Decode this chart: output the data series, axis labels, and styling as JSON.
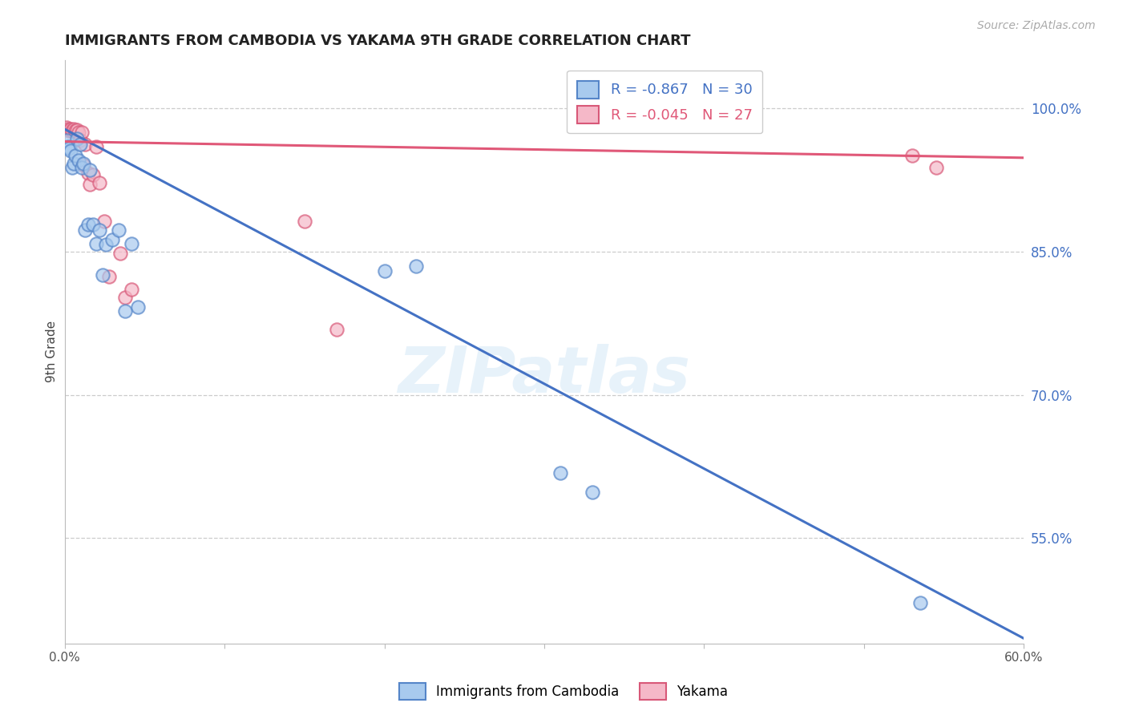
{
  "title": "IMMIGRANTS FROM CAMBODIA VS YAKAMA 9TH GRADE CORRELATION CHART",
  "source": "Source: ZipAtlas.com",
  "ylabel": "9th Grade",
  "ylabel_right_ticks": [
    "100.0%",
    "85.0%",
    "70.0%",
    "55.0%"
  ],
  "ylabel_right_values": [
    1.0,
    0.85,
    0.7,
    0.55
  ],
  "xlim": [
    0.0,
    0.6
  ],
  "ylim": [
    0.44,
    1.05
  ],
  "legend_blue_r": "-0.867",
  "legend_blue_n": "30",
  "legend_pink_r": "-0.045",
  "legend_pink_n": "27",
  "blue_scatter_x": [
    0.001,
    0.002,
    0.003,
    0.004,
    0.005,
    0.006,
    0.007,
    0.008,
    0.009,
    0.01,
    0.011,
    0.012,
    0.013,
    0.015,
    0.016,
    0.018,
    0.02,
    0.022,
    0.024,
    0.026,
    0.03,
    0.034,
    0.038,
    0.042,
    0.046,
    0.2,
    0.22,
    0.31,
    0.33,
    0.535
  ],
  "blue_scatter_y": [
    0.966,
    0.96,
    0.958,
    0.955,
    0.938,
    0.942,
    0.95,
    0.968,
    0.945,
    0.962,
    0.938,
    0.942,
    0.872,
    0.878,
    0.935,
    0.878,
    0.858,
    0.872,
    0.825,
    0.857,
    0.862,
    0.872,
    0.788,
    0.858,
    0.792,
    0.83,
    0.835,
    0.618,
    0.598,
    0.482
  ],
  "pink_scatter_x": [
    0.001,
    0.002,
    0.003,
    0.004,
    0.005,
    0.006,
    0.007,
    0.008,
    0.009,
    0.01,
    0.011,
    0.012,
    0.013,
    0.015,
    0.016,
    0.018,
    0.02,
    0.022,
    0.025,
    0.028,
    0.035,
    0.038,
    0.042,
    0.15,
    0.17,
    0.53,
    0.545
  ],
  "pink_scatter_y": [
    0.98,
    0.978,
    0.976,
    0.978,
    0.976,
    0.978,
    0.976,
    0.977,
    0.975,
    0.966,
    0.975,
    0.94,
    0.962,
    0.932,
    0.92,
    0.93,
    0.96,
    0.922,
    0.882,
    0.824,
    0.848,
    0.802,
    0.81,
    0.882,
    0.768,
    0.95,
    0.938
  ],
  "blue_line_x": [
    0.0,
    0.6
  ],
  "blue_line_y": [
    0.978,
    0.445
  ],
  "pink_line_x": [
    0.0,
    0.6
  ],
  "pink_line_y": [
    0.965,
    0.948
  ],
  "blue_color": "#A8CAEE",
  "pink_color": "#F5B8C8",
  "blue_edge_color": "#5585C8",
  "pink_edge_color": "#D85878",
  "blue_line_color": "#4472C4",
  "pink_line_color": "#E05878",
  "watermark_text": "ZIPatlas",
  "background_color": "#ffffff",
  "grid_color": "#cccccc"
}
